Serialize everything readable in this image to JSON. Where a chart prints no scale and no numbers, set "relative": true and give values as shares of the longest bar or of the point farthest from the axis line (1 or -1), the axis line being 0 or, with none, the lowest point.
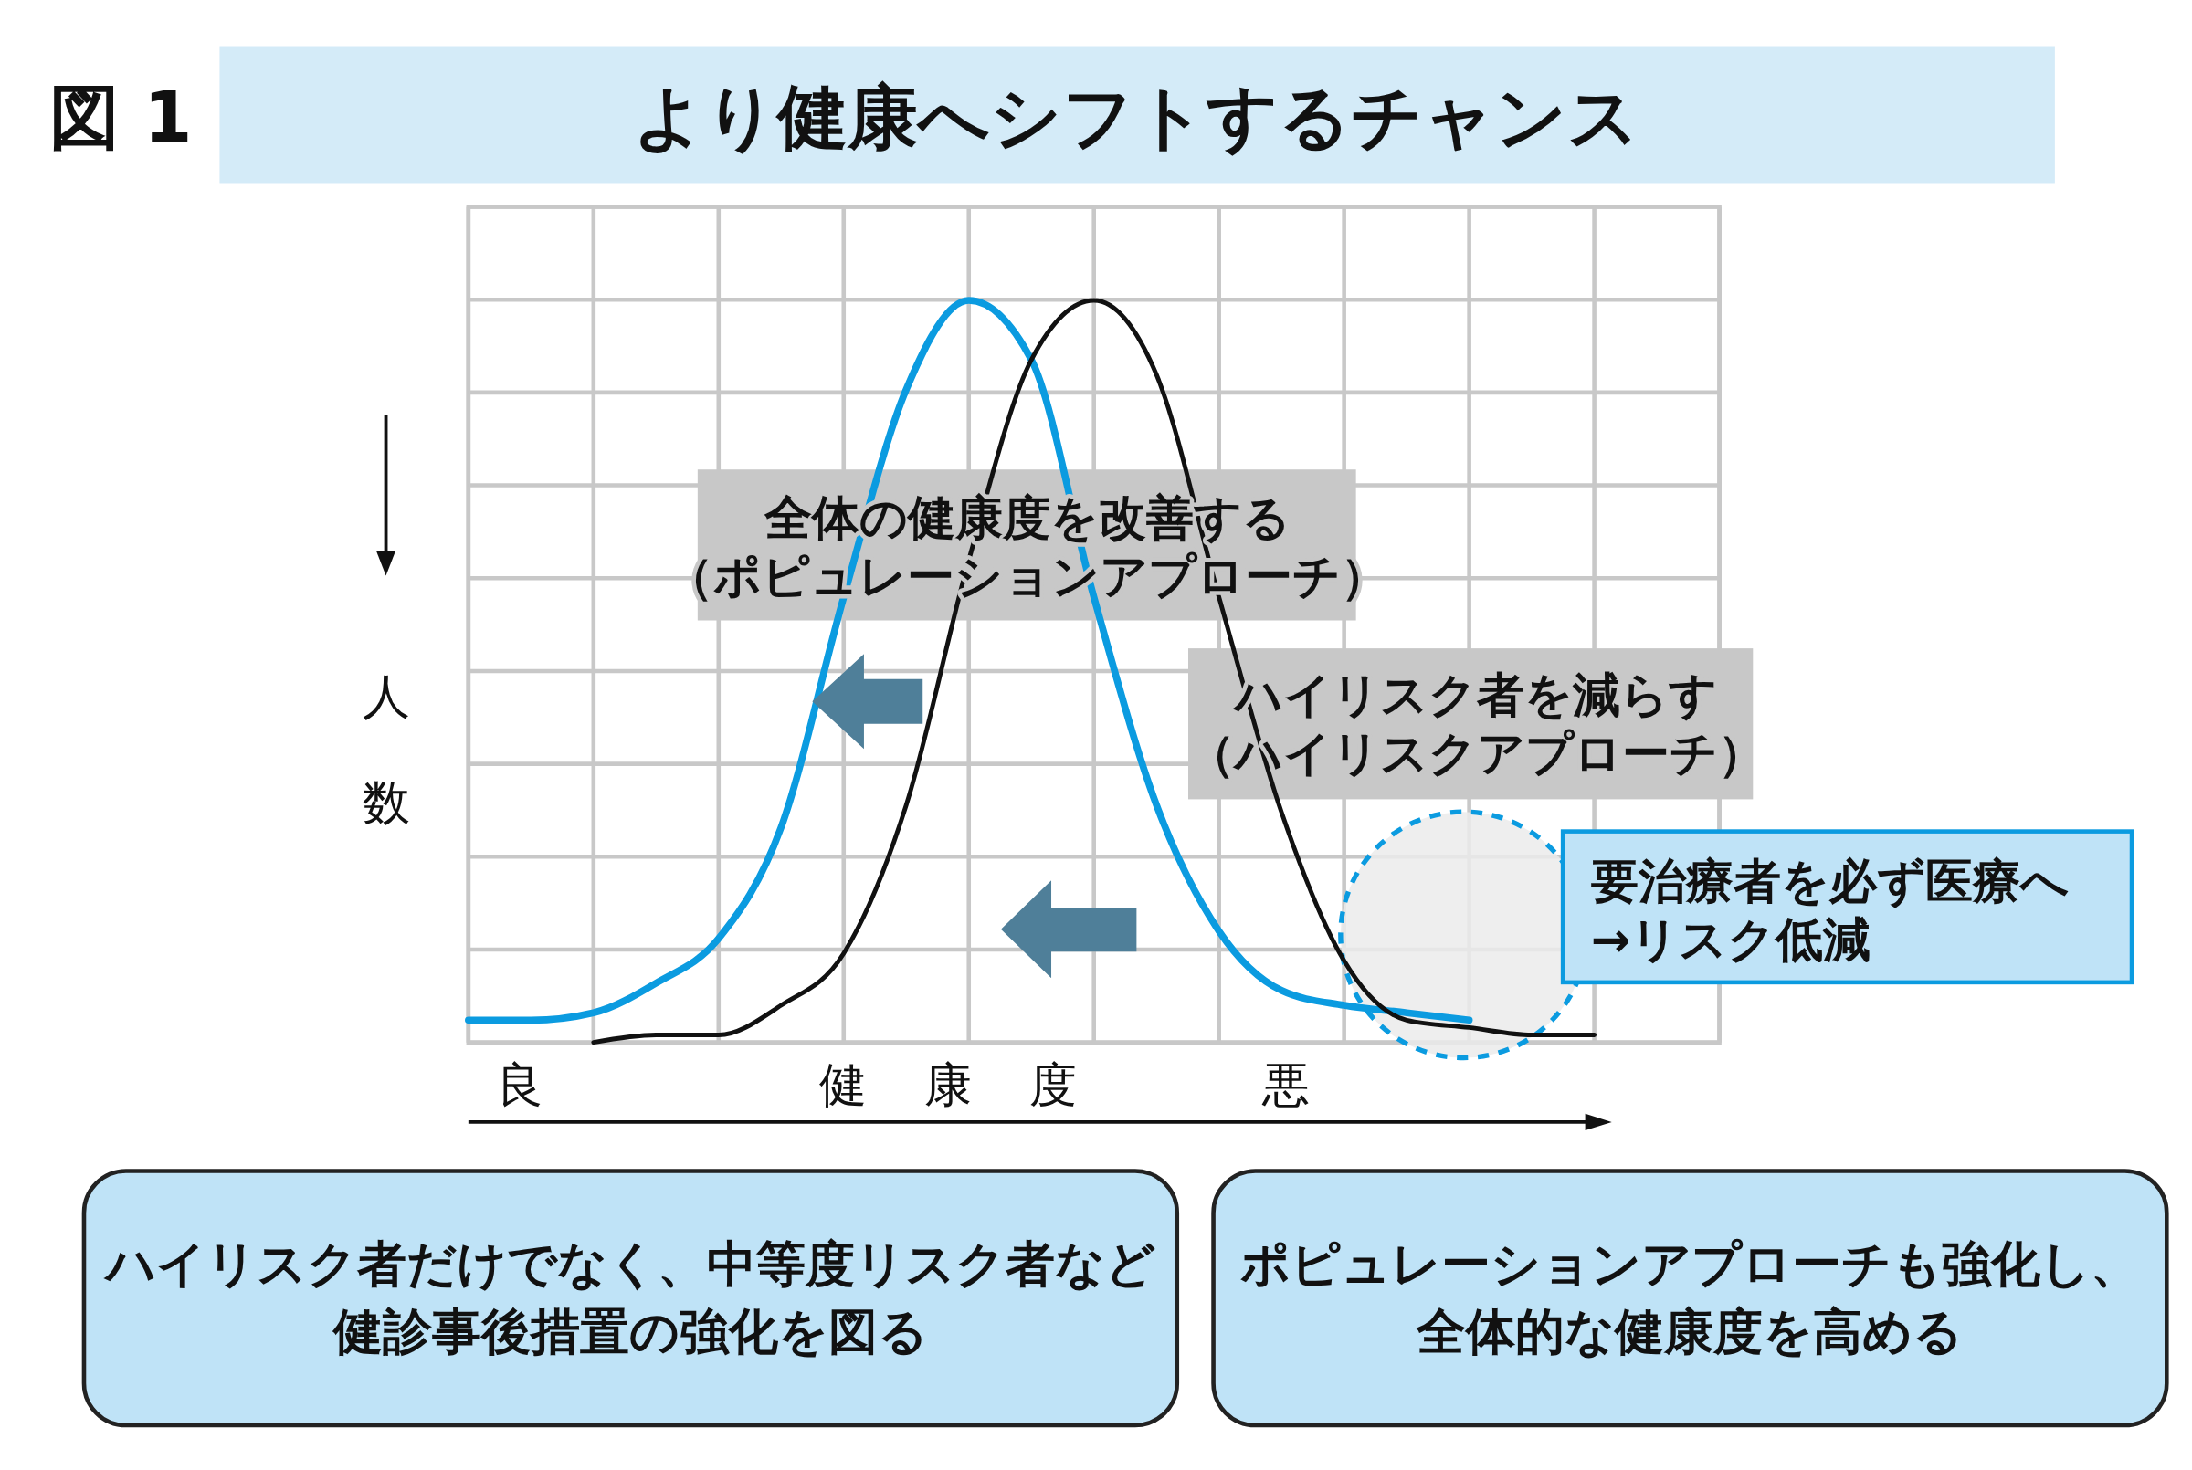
{
  "chart_data": {
    "type": "line",
    "title": "より健康へシフトするチャンス",
    "xlabel": "健康度",
    "ylabel": "人数",
    "relative": true,
    "grid": true,
    "legend": false,
    "marker": "none",
    "line_style": "solid",
    "categories": [
      null,
      null,
      null,
      null,
      null,
      null,
      null,
      null,
      null,
      null,
      null,
      null,
      null,
      null,
      null,
      null,
      null,
      null,
      null,
      null,
      null
    ],
    "series": [
      {
        "color": "#0b9be0",
        "values": [
          0.03,
          0.03,
          0.04,
          0.08,
          0.14,
          0.29,
          0.6,
          0.88,
          1,
          0.92,
          0.6,
          0.32,
          0.15,
          0.07,
          0.05,
          0.04,
          0.03,
          null,
          null,
          null,
          null
        ]
      },
      {
        "color": "#111111",
        "values": [
          null,
          null,
          0,
          0.01,
          0.01,
          0.05,
          0.12,
          0.32,
          0.65,
          0.92,
          1,
          0.9,
          0.6,
          0.31,
          0.11,
          0.03,
          0.02,
          0.01,
          0.01,
          null,
          null
        ]
      }
    ],
    "annotations": [
      "図 1",
      "良",
      "悪",
      "全体の健康度を改善する（ポピュレーションアプローチ）",
      "ハイリスク者を減らす（ハイリスクアプローチ）",
      "要治療者を必ず医療へ→リスク低減",
      "ハイリスク者だけでなく、中等度リスク者など健診事後措置の強化を図る",
      "ポピュレーションアプローチも強化し、全体的な健康度を高める"
    ]
  }
}
